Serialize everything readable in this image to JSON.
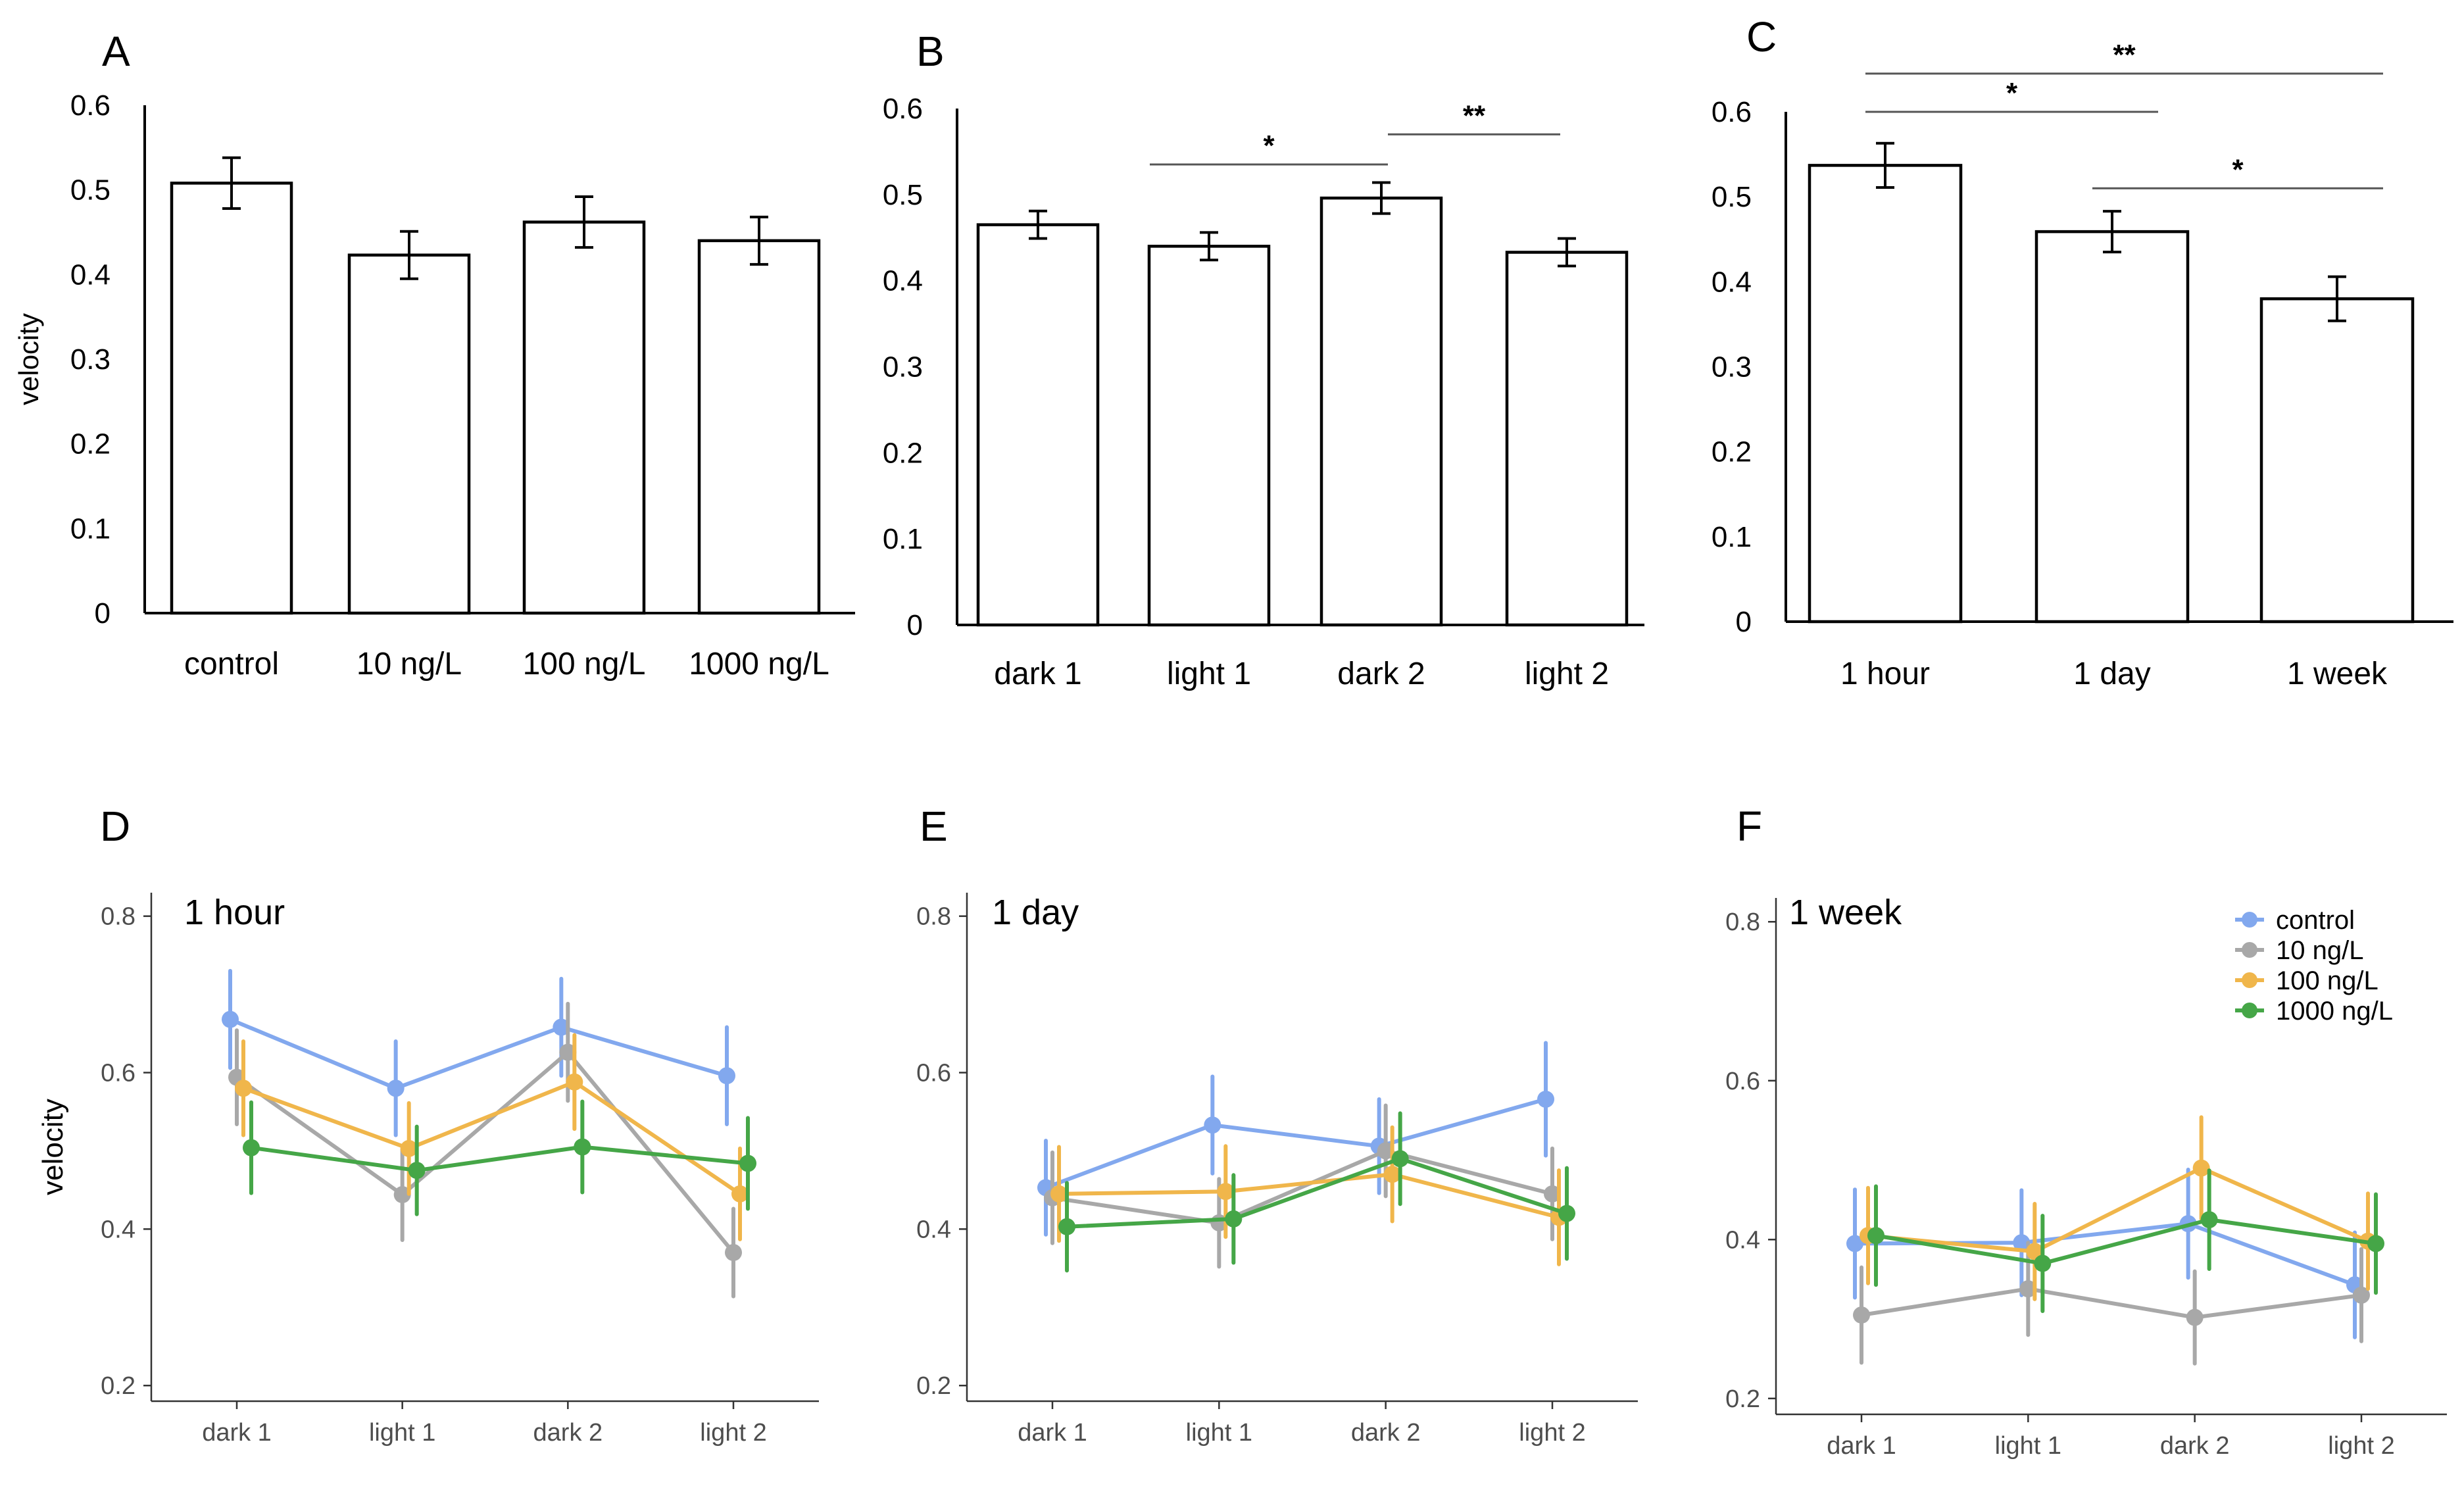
{
  "chart_data": [
    {
      "panel": "A",
      "type": "bar",
      "title": "",
      "ylabel": "velocity",
      "xlabel": "",
      "ylim": [
        0,
        0.6
      ],
      "yticks": [
        "0",
        "0.1",
        "0.2",
        "0.3",
        "0.4",
        "0.5",
        "0.6"
      ],
      "categories": [
        "control",
        "10 ng/L",
        "100 ng/L",
        "1000 ng/L"
      ],
      "values": [
        0.508,
        0.423,
        0.462,
        0.44
      ],
      "errors": [
        0.03,
        0.028,
        0.03,
        0.028
      ],
      "significance": []
    },
    {
      "panel": "B",
      "type": "bar",
      "title": "",
      "ylabel": "",
      "xlabel": "",
      "ylim": [
        0,
        0.6
      ],
      "yticks": [
        "0",
        "0.1",
        "0.2",
        "0.3",
        "0.4",
        "0.5",
        "0.6"
      ],
      "categories": [
        "dark 1",
        "light 1",
        "dark 2",
        "light 2"
      ],
      "values": [
        0.465,
        0.44,
        0.496,
        0.433
      ],
      "errors": [
        0.016,
        0.016,
        0.018,
        0.016
      ],
      "significance": [
        {
          "from": 1,
          "to": 2,
          "label": "*",
          "y": 0.535
        },
        {
          "from": 2,
          "to": 3,
          "label": "**",
          "y": 0.57
        }
      ]
    },
    {
      "panel": "C",
      "type": "bar",
      "title": "",
      "ylabel": "",
      "xlabel": "",
      "ylim": [
        0,
        0.6
      ],
      "yticks": [
        "0",
        "0.1",
        "0.2",
        "0.3",
        "0.4",
        "0.5",
        "0.6"
      ],
      "categories": [
        "1 hour",
        "1 day",
        "1 week"
      ],
      "values": [
        0.537,
        0.459,
        0.38
      ],
      "errors": [
        0.026,
        0.024,
        0.026
      ],
      "significance": [
        {
          "from": 0,
          "to": 1,
          "label": "*",
          "y": 0.6
        },
        {
          "from": 0,
          "to": 2,
          "label": "**",
          "y": 0.645
        },
        {
          "from": 1,
          "to": 2,
          "label": "*",
          "y": 0.51
        }
      ]
    },
    {
      "panel": "D",
      "type": "line",
      "title": "1 hour",
      "ylabel": "velocity",
      "xlabel": "",
      "ylim": [
        0.18,
        0.83
      ],
      "yticks": [
        "0.2",
        "0.4",
        "0.6",
        "0.8"
      ],
      "categories": [
        "dark 1",
        "light 1",
        "dark 2",
        "light 2"
      ],
      "series": [
        {
          "name": "control",
          "values": [
            0.668,
            0.58,
            0.658,
            0.596
          ],
          "errors": [
            0.062,
            0.06,
            0.062,
            0.062
          ]
        },
        {
          "name": "10 ng/L",
          "values": [
            0.594,
            0.444,
            0.626,
            0.37
          ],
          "errors": [
            0.06,
            0.058,
            0.062,
            0.056
          ]
        },
        {
          "name": "100 ng/L",
          "values": [
            0.58,
            0.503,
            0.588,
            0.445
          ],
          "errors": [
            0.06,
            0.058,
            0.06,
            0.058
          ]
        },
        {
          "name": "1000 ng/L",
          "values": [
            0.504,
            0.475,
            0.505,
            0.484
          ],
          "errors": [
            0.058,
            0.056,
            0.058,
            0.058
          ]
        }
      ]
    },
    {
      "panel": "E",
      "type": "line",
      "title": "1 day",
      "ylabel": "",
      "xlabel": "",
      "ylim": [
        0.18,
        0.83
      ],
      "yticks": [
        "0.2",
        "0.4",
        "0.6",
        "0.8"
      ],
      "categories": [
        "dark 1",
        "light 1",
        "dark 2",
        "light 2"
      ],
      "series": [
        {
          "name": "control",
          "values": [
            0.453,
            0.533,
            0.506,
            0.566
          ],
          "errors": [
            0.06,
            0.062,
            0.06,
            0.072
          ]
        },
        {
          "name": "10 ng/L",
          "values": [
            0.44,
            0.408,
            0.5,
            0.445
          ],
          "errors": [
            0.058,
            0.056,
            0.058,
            0.058
          ]
        },
        {
          "name": "100 ng/L",
          "values": [
            0.445,
            0.448,
            0.47,
            0.415
          ],
          "errors": [
            0.06,
            0.058,
            0.06,
            0.06
          ]
        },
        {
          "name": "1000 ng/L",
          "values": [
            0.403,
            0.413,
            0.49,
            0.42
          ],
          "errors": [
            0.056,
            0.056,
            0.058,
            0.058
          ]
        }
      ]
    },
    {
      "panel": "F",
      "type": "line",
      "title": "1 week",
      "ylabel": "",
      "xlabel": "",
      "ylim": [
        0.18,
        0.83
      ],
      "yticks": [
        "0.2",
        "0.4",
        "0.6",
        "0.8"
      ],
      "categories": [
        "dark 1",
        "light 1",
        "dark 2",
        "light 2"
      ],
      "legend_position": "top-right",
      "series": [
        {
          "name": "control",
          "values": [
            0.395,
            0.396,
            0.42,
            0.343
          ],
          "errors": [
            0.068,
            0.066,
            0.068,
            0.066
          ]
        },
        {
          "name": "10 ng/L",
          "values": [
            0.305,
            0.338,
            0.302,
            0.33
          ],
          "errors": [
            0.06,
            0.058,
            0.058,
            0.058
          ]
        },
        {
          "name": "100 ng/L",
          "values": [
            0.405,
            0.385,
            0.49,
            0.398
          ],
          "errors": [
            0.06,
            0.06,
            0.064,
            0.06
          ]
        },
        {
          "name": "1000 ng/L",
          "values": [
            0.405,
            0.37,
            0.425,
            0.395
          ],
          "errors": [
            0.062,
            0.06,
            0.062,
            0.062
          ]
        }
      ]
    }
  ],
  "series_colors": {
    "control": "#82A8EE",
    "10 ng/L": "#A8A8A8",
    "100 ng/L": "#F0B64B",
    "1000 ng/L": "#45A647"
  },
  "legend": [
    "control",
    "10 ng/L",
    "100 ng/L",
    "1000 ng/L"
  ]
}
